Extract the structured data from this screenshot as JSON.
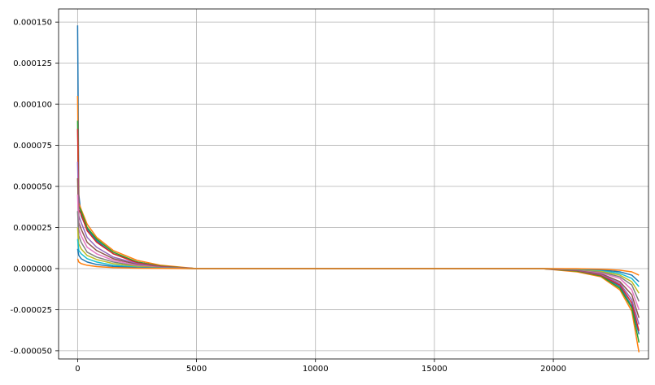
{
  "chart_data": {
    "type": "line",
    "title": "",
    "xlabel": "",
    "ylabel": "",
    "xlim": [
      -800,
      24000
    ],
    "ylim": [
      -5.5e-05,
      0.000158
    ],
    "grid": true,
    "legend": "none",
    "x_ticks": [
      {
        "value": 0,
        "label": "0"
      },
      {
        "value": 5000,
        "label": "5000"
      },
      {
        "value": 10000,
        "label": "10000"
      },
      {
        "value": 15000,
        "label": "15000"
      },
      {
        "value": 20000,
        "label": "20000"
      }
    ],
    "y_ticks": [
      {
        "value": 0.00015,
        "label": "0.000150"
      },
      {
        "value": 0.000125,
        "label": "0.000125"
      },
      {
        "value": 0.0001,
        "label": "0.000100"
      },
      {
        "value": 7.5e-05,
        "label": "0.000075"
      },
      {
        "value": 5e-05,
        "label": "0.000050"
      },
      {
        "value": 2.5e-05,
        "label": "0.000025"
      },
      {
        "value": 0,
        "label": "0.000000"
      },
      {
        "value": -2.5e-05,
        "label": "-0.000025"
      },
      {
        "value": -5e-05,
        "label": "-0.000050"
      }
    ],
    "colors": [
      "#1f77b4",
      "#ff7f0e",
      "#2ca02c",
      "#d62728",
      "#9467bd",
      "#8c564b",
      "#e377c2",
      "#7f7f7f",
      "#bcbd22",
      "#17becf"
    ],
    "series": [
      {
        "x": [
          0,
          50,
          150,
          400,
          800,
          1500,
          2500,
          3500,
          5000,
          19500,
          21000,
          22000,
          22800,
          23300,
          23600
        ],
        "y": [
          0.000148,
          4.5e-05,
          3.2e-05,
          2.4e-05,
          1.7e-05,
          9e-06,
          4e-06,
          1.5e-06,
          0,
          0,
          -1.5e-06,
          -4e-06,
          -1.1e-05,
          -2.3e-05,
          -4e-05
        ]
      },
      {
        "x": [
          0,
          50,
          150,
          400,
          800,
          1500,
          2500,
          3500,
          5000,
          19500,
          21000,
          22000,
          22800,
          23300,
          23600
        ],
        "y": [
          0.000105,
          4e-05,
          3.6e-05,
          2.7e-05,
          1.9e-05,
          1.1e-05,
          5e-06,
          2e-06,
          0,
          0,
          -2e-06,
          -5e-06,
          -1.3e-05,
          -2.6e-05,
          -5.1e-05
        ]
      },
      {
        "x": [
          0,
          50,
          150,
          400,
          800,
          1500,
          2500,
          3500,
          5000,
          19500,
          21000,
          22000,
          22800,
          23300,
          23600
        ],
        "y": [
          9e-05,
          3.8e-05,
          3.5e-05,
          2.5e-05,
          1.8e-05,
          1e-05,
          4e-06,
          1.5e-06,
          0,
          0,
          -1.5e-06,
          -4.5e-06,
          -1.2e-05,
          -2.4e-05,
          -4.5e-05
        ]
      },
      {
        "x": [
          0,
          50,
          150,
          400,
          800,
          1500,
          2500,
          3500,
          5000,
          19500,
          21000,
          22000,
          22800,
          23300,
          23600
        ],
        "y": [
          8.5e-05,
          3.6e-05,
          3.3e-05,
          2.3e-05,
          1.6e-05,
          9e-06,
          3.5e-06,
          1.2e-06,
          0,
          0,
          -1.2e-06,
          -4e-06,
          -1e-05,
          -2.1e-05,
          -3.8e-05
        ]
      },
      {
        "x": [
          0,
          50,
          150,
          400,
          800,
          1500,
          2500,
          3500,
          5000,
          19500,
          21000,
          22000,
          22800,
          23300,
          23600
        ],
        "y": [
          6.5e-05,
          3.2e-05,
          2.8e-05,
          1.9e-05,
          1.3e-05,
          7e-06,
          3e-06,
          1e-06,
          0,
          0,
          -1e-06,
          -3.5e-06,
          -9e-06,
          -1.9e-05,
          -3.4e-05
        ]
      },
      {
        "x": [
          0,
          50,
          150,
          400,
          800,
          1500,
          2500,
          3500,
          5000,
          19500,
          21000,
          22000,
          22800,
          23300,
          23600
        ],
        "y": [
          5.5e-05,
          2.8e-05,
          2.4e-05,
          1.6e-05,
          1.1e-05,
          6e-06,
          2.5e-06,
          8e-07,
          0,
          0,
          -8e-07,
          -3e-06,
          -8e-06,
          -1.6e-05,
          -3e-05
        ]
      },
      {
        "x": [
          0,
          50,
          150,
          400,
          800,
          1500,
          2500,
          3500,
          5000,
          19500,
          21000,
          22000,
          22800,
          23300,
          23600
        ],
        "y": [
          4.5e-05,
          2.4e-05,
          2e-05,
          1.3e-05,
          9e-06,
          5e-06,
          2e-06,
          6e-07,
          0,
          0,
          -6e-07,
          -2.5e-06,
          -6e-06,
          -1.3e-05,
          -2.5e-05
        ]
      },
      {
        "x": [
          0,
          50,
          150,
          400,
          800,
          1500,
          2500,
          3500,
          5000,
          19500,
          21000,
          22000,
          22800,
          23300,
          23600
        ],
        "y": [
          3.5e-05,
          2e-05,
          1.6e-05,
          1e-05,
          7e-06,
          4e-06,
          1.5e-06,
          5e-07,
          0,
          0,
          -5e-07,
          -2e-06,
          -5e-06,
          -1e-05,
          -2e-05
        ]
      },
      {
        "x": [
          0,
          50,
          150,
          400,
          800,
          1500,
          2500,
          3500,
          5000,
          19500,
          21000,
          22000,
          22800,
          23300,
          23600
        ],
        "y": [
          2.5e-05,
          1.5e-05,
          1.2e-05,
          8e-06,
          5.5e-06,
          3e-06,
          1.2e-06,
          4e-07,
          0,
          0,
          -4e-07,
          -1.5e-06,
          -4e-06,
          -8e-06,
          -1.5e-05
        ]
      },
      {
        "x": [
          0,
          50,
          150,
          400,
          800,
          1500,
          2500,
          3500,
          5000,
          19500,
          21000,
          22000,
          22800,
          23300,
          23600
        ],
        "y": [
          1.8e-05,
          1.1e-05,
          9e-06,
          6e-06,
          4e-06,
          2e-06,
          8e-07,
          3e-07,
          0,
          0,
          -3e-07,
          -1e-06,
          -3e-06,
          -6e-06,
          -1.1e-05
        ]
      },
      {
        "x": [
          0,
          50,
          150,
          400,
          800,
          1500,
          2500,
          3500,
          5000,
          19500,
          21000,
          22000,
          22800,
          23300,
          23600
        ],
        "y": [
          1.2e-05,
          8e-06,
          6e-06,
          4e-06,
          2.5e-06,
          1.3e-06,
          5e-07,
          2e-07,
          0,
          0,
          -2e-07,
          -7e-07,
          -2e-06,
          -4e-06,
          -8e-06
        ]
      },
      {
        "x": [
          0,
          50,
          150,
          400,
          800,
          1500,
          2500,
          3500,
          5000,
          19500,
          21000,
          22000,
          22800,
          23300,
          23600
        ],
        "y": [
          6e-06,
          4e-06,
          3e-06,
          2e-06,
          1.2e-06,
          6e-07,
          2e-07,
          1e-07,
          0,
          0,
          -1e-07,
          -4e-07,
          -1e-06,
          -2e-06,
          -4e-06
        ]
      }
    ]
  }
}
